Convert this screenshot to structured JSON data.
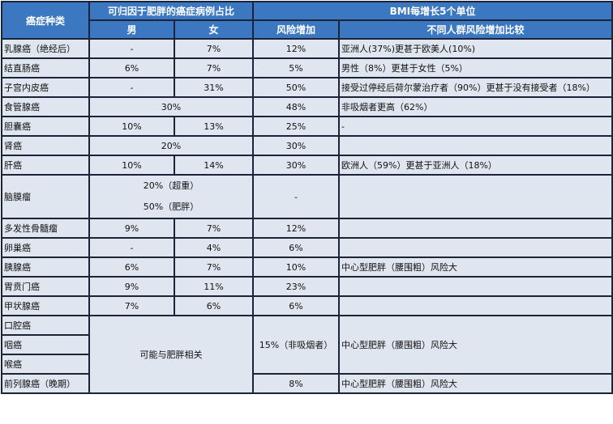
{
  "header": {
    "type_col": "癌症种类",
    "obesity_group": "可归因于肥胖的癌症病例占比",
    "bmi_group": "BMI每增长5个单位",
    "male": "男",
    "female": "女",
    "risk_increase": "风险增加",
    "comparison": "不同人群风险增加比较"
  },
  "rows": [
    {
      "name": "乳腺癌（绝经后）",
      "male": "-",
      "female": "7%",
      "risk": "12%",
      "compare": "亚洲人(37%)更甚于欧美人(10%)"
    },
    {
      "name": "结直肠癌",
      "male": "6%",
      "female": "7%",
      "risk": "5%",
      "compare": "男性（8%）更甚于女性（5%）"
    },
    {
      "name": "子宫内皮癌",
      "male": "-",
      "female": "31%",
      "risk": "50%",
      "compare": "接受过停经后荷尔蒙治疗者（90%）更甚于没有接受者（18%）"
    },
    {
      "name": "食管腺癌",
      "both": "30%",
      "risk": "48%",
      "compare": "非吸烟者更高（62%）"
    },
    {
      "name": "胆囊癌",
      "male": "10%",
      "female": "13%",
      "risk": "25%",
      "compare": "-"
    },
    {
      "name": "肾癌",
      "both": "20%",
      "risk": "30%",
      "compare": ""
    },
    {
      "name": "肝癌",
      "male": "10%",
      "female": "14%",
      "risk": "30%",
      "compare": "欧洲人（59%）更甚于亚洲人（18%）"
    },
    {
      "name": "脑膜瘤",
      "both_line1": "20%（超重）",
      "both_line2": "50%（肥胖）",
      "risk": "-",
      "compare": ""
    },
    {
      "name": "多发性骨髓瘤",
      "male": "9%",
      "female": "7%",
      "risk": "12%",
      "compare": ""
    },
    {
      "name": "卵巢癌",
      "male": "-",
      "female": "4%",
      "risk": "6%",
      "compare": ""
    },
    {
      "name": "胰腺癌",
      "male": "6%",
      "female": "7%",
      "risk": "10%",
      "compare": "中心型肥胖（腰围粗）风险大"
    },
    {
      "name": "胃贲门癌",
      "male": "9%",
      "female": "11%",
      "risk": "23%",
      "compare": ""
    },
    {
      "name": "甲状腺癌",
      "male": "7%",
      "female": "6%",
      "risk": "6%",
      "compare": ""
    }
  ],
  "group": {
    "names": [
      "口腔癌",
      "咽癌",
      "喉癌",
      "前列腺癌（晚期）"
    ],
    "both": "可能与肥胖相关",
    "risk_main": "15%（非吸烟者）",
    "compare_main": "中心型肥胖（腰围粗）风险大",
    "risk_prostate": "8%",
    "compare_prostate": "中心型肥胖（腰围粗）风险大"
  }
}
